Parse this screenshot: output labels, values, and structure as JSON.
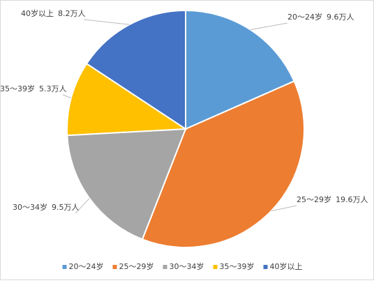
{
  "chart_data": {
    "type": "pie",
    "categories": [
      "20～24岁",
      "25～29岁",
      "30～34岁",
      "35～39岁",
      "40岁以上"
    ],
    "values": [
      9.6,
      19.6,
      9.5,
      5.3,
      8.2
    ],
    "value_labels": [
      "9.6万人",
      "19.6万人",
      "9.5万人",
      "5.3万人",
      "8.2万人"
    ],
    "colors": [
      "#5b9bd5",
      "#ed7d31",
      "#a5a5a5",
      "#ffc000",
      "#4472c4"
    ],
    "legend": "bottom"
  }
}
